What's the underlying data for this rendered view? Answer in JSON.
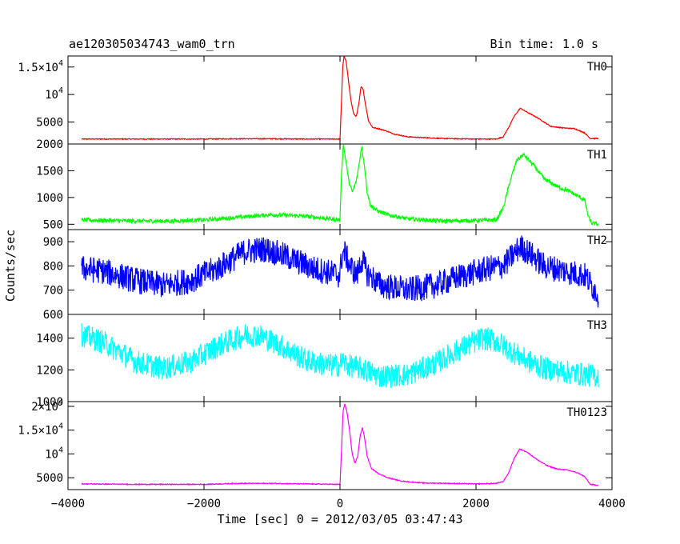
{
  "header": {
    "title": "ae120305034743_wam0_trn",
    "bin_time": "Bin time: 1.0 s"
  },
  "chart_data": {
    "type": "line",
    "xlabel": "Time [sec] 0 = 2012/03/05 03:47:43",
    "ylabel": "Counts/sec",
    "xlim": [
      -4000,
      4000
    ],
    "x_ticks": [
      -4000,
      -2000,
      0,
      2000,
      4000
    ],
    "x_tick_labels": [
      "−4000",
      "−2000",
      "0",
      "2000",
      "4000"
    ],
    "data_range": [
      -3800,
      3800
    ],
    "panels": [
      {
        "name": "TH0",
        "color": "#ff0000",
        "ylim": [
          1000,
          17000
        ],
        "y_ticks": [
          {
            "v": 5000,
            "base": "5000",
            "sup": ""
          },
          {
            "v": 10000,
            "base": "10",
            "sup": "4"
          },
          {
            "v": 15000,
            "base": "1.5×10",
            "sup": "4"
          }
        ],
        "noise": 80,
        "points": [
          [
            -3800,
            1900
          ],
          [
            -3000,
            1900
          ],
          [
            -2000,
            1900
          ],
          [
            -1500,
            1950
          ],
          [
            -1000,
            1950
          ],
          [
            -500,
            1900
          ],
          [
            -30,
            1900
          ],
          [
            0,
            1900
          ],
          [
            20,
            8000
          ],
          [
            40,
            15000
          ],
          [
            60,
            17000
          ],
          [
            90,
            16000
          ],
          [
            120,
            13000
          ],
          [
            160,
            9000
          ],
          [
            200,
            6500
          ],
          [
            240,
            6000
          ],
          [
            280,
            8500
          ],
          [
            310,
            11500
          ],
          [
            340,
            11000
          ],
          [
            370,
            8500
          ],
          [
            420,
            5200
          ],
          [
            480,
            4000
          ],
          [
            560,
            3800
          ],
          [
            650,
            3500
          ],
          [
            800,
            2800
          ],
          [
            1000,
            2300
          ],
          [
            1500,
            2000
          ],
          [
            2000,
            1900
          ],
          [
            2300,
            1900
          ],
          [
            2400,
            2300
          ],
          [
            2480,
            4000
          ],
          [
            2560,
            6000
          ],
          [
            2650,
            7500
          ],
          [
            2750,
            6800
          ],
          [
            2900,
            5800
          ],
          [
            3000,
            5000
          ],
          [
            3100,
            4200
          ],
          [
            3300,
            3900
          ],
          [
            3450,
            3800
          ],
          [
            3600,
            3000
          ],
          [
            3680,
            2000
          ],
          [
            3800,
            2000
          ]
        ]
      },
      {
        "name": "TH1",
        "color": "#00ff00",
        "ylim": [
          400,
          2000
        ],
        "y_ticks": [
          {
            "v": 500,
            "base": "500",
            "sup": ""
          },
          {
            "v": 1000,
            "base": "1000",
            "sup": ""
          },
          {
            "v": 1500,
            "base": "1500",
            "sup": ""
          },
          {
            "v": 2000,
            "base": "2000",
            "sup": ""
          }
        ],
        "noise": 38,
        "points": [
          [
            -3800,
            580
          ],
          [
            -3000,
            560
          ],
          [
            -2500,
            560
          ],
          [
            -2000,
            580
          ],
          [
            -1500,
            630
          ],
          [
            -1000,
            680
          ],
          [
            -500,
            650
          ],
          [
            0,
            580
          ],
          [
            20,
            1400
          ],
          [
            50,
            2000
          ],
          [
            90,
            1650
          ],
          [
            130,
            1300
          ],
          [
            180,
            1100
          ],
          [
            240,
            1300
          ],
          [
            290,
            1700
          ],
          [
            320,
            1950
          ],
          [
            360,
            1600
          ],
          [
            400,
            1100
          ],
          [
            450,
            850
          ],
          [
            550,
            750
          ],
          [
            700,
            680
          ],
          [
            1000,
            600
          ],
          [
            1500,
            560
          ],
          [
            2000,
            570
          ],
          [
            2300,
            580
          ],
          [
            2400,
            800
          ],
          [
            2500,
            1300
          ],
          [
            2600,
            1700
          ],
          [
            2700,
            1800
          ],
          [
            2850,
            1600
          ],
          [
            3000,
            1350
          ],
          [
            3200,
            1200
          ],
          [
            3400,
            1100
          ],
          [
            3600,
            950
          ],
          [
            3650,
            650
          ],
          [
            3700,
            520
          ],
          [
            3800,
            500
          ]
        ]
      },
      {
        "name": "TH2",
        "color": "#0000ff",
        "ylim": [
          600,
          950
        ],
        "y_ticks": [
          {
            "v": 600,
            "base": "600",
            "sup": ""
          },
          {
            "v": 700,
            "base": "700",
            "sup": ""
          },
          {
            "v": 800,
            "base": "800",
            "sup": ""
          },
          {
            "v": 900,
            "base": "900",
            "sup": ""
          }
        ],
        "noise": 55,
        "points": [
          [
            -3800,
            790
          ],
          [
            -3500,
            780
          ],
          [
            -3000,
            740
          ],
          [
            -2600,
            720
          ],
          [
            -2200,
            740
          ],
          [
            -1800,
            790
          ],
          [
            -1400,
            860
          ],
          [
            -1100,
            870
          ],
          [
            -800,
            840
          ],
          [
            -400,
            790
          ],
          [
            -100,
            770
          ],
          [
            0,
            760
          ],
          [
            20,
            830
          ],
          [
            60,
            860
          ],
          [
            150,
            800
          ],
          [
            250,
            760
          ],
          [
            320,
            830
          ],
          [
            400,
            770
          ],
          [
            600,
            720
          ],
          [
            1000,
            700
          ],
          [
            1400,
            720
          ],
          [
            1800,
            760
          ],
          [
            2200,
            790
          ],
          [
            2400,
            800
          ],
          [
            2500,
            830
          ],
          [
            2650,
            880
          ],
          [
            2800,
            850
          ],
          [
            3000,
            800
          ],
          [
            3300,
            780
          ],
          [
            3600,
            760
          ],
          [
            3800,
            680
          ]
        ]
      },
      {
        "name": "TH3",
        "color": "#00ffff",
        "ylim": [
          1000,
          1550
        ],
        "y_ticks": [
          {
            "v": 1000,
            "base": "1000",
            "sup": ""
          },
          {
            "v": 1200,
            "base": "1200",
            "sup": ""
          },
          {
            "v": 1400,
            "base": "1400",
            "sup": ""
          }
        ],
        "noise": 75,
        "points": [
          [
            -3800,
            1420
          ],
          [
            -3500,
            1380
          ],
          [
            -3000,
            1250
          ],
          [
            -2600,
            1210
          ],
          [
            -2200,
            1250
          ],
          [
            -1800,
            1350
          ],
          [
            -1400,
            1420
          ],
          [
            -1200,
            1420
          ],
          [
            -900,
            1360
          ],
          [
            -500,
            1260
          ],
          [
            -200,
            1230
          ],
          [
            0,
            1230
          ],
          [
            30,
            1260
          ],
          [
            100,
            1230
          ],
          [
            300,
            1210
          ],
          [
            600,
            1160
          ],
          [
            1000,
            1170
          ],
          [
            1400,
            1240
          ],
          [
            1800,
            1340
          ],
          [
            2100,
            1400
          ],
          [
            2300,
            1380
          ],
          [
            2700,
            1270
          ],
          [
            3000,
            1210
          ],
          [
            3400,
            1180
          ],
          [
            3800,
            1160
          ]
        ]
      },
      {
        "name": "TH0123",
        "color": "#ff00ff",
        "ylim": [
          2500,
          21000
        ],
        "y_ticks": [
          {
            "v": 5000,
            "base": "5000",
            "sup": ""
          },
          {
            "v": 10000,
            "base": "10",
            "sup": "4"
          },
          {
            "v": 15000,
            "base": "1.5×10",
            "sup": "4"
          },
          {
            "v": 20000,
            "base": "2×10",
            "sup": "4"
          }
        ],
        "noise": 90,
        "points": [
          [
            -3800,
            3700
          ],
          [
            -3000,
            3600
          ],
          [
            -2000,
            3600
          ],
          [
            -1500,
            3800
          ],
          [
            -1000,
            3800
          ],
          [
            -500,
            3700
          ],
          [
            -30,
            3600
          ],
          [
            0,
            3600
          ],
          [
            20,
            10000
          ],
          [
            45,
            19000
          ],
          [
            70,
            20500
          ],
          [
            100,
            19000
          ],
          [
            140,
            15000
          ],
          [
            180,
            10000
          ],
          [
            220,
            8000
          ],
          [
            260,
            9500
          ],
          [
            300,
            14000
          ],
          [
            330,
            15500
          ],
          [
            360,
            13500
          ],
          [
            400,
            9500
          ],
          [
            460,
            7000
          ],
          [
            550,
            6000
          ],
          [
            700,
            5000
          ],
          [
            900,
            4300
          ],
          [
            1200,
            3900
          ],
          [
            1600,
            3800
          ],
          [
            2000,
            3700
          ],
          [
            2300,
            3800
          ],
          [
            2400,
            4200
          ],
          [
            2480,
            6000
          ],
          [
            2560,
            9000
          ],
          [
            2640,
            11000
          ],
          [
            2740,
            10500
          ],
          [
            2900,
            8800
          ],
          [
            3050,
            7500
          ],
          [
            3200,
            6800
          ],
          [
            3350,
            6600
          ],
          [
            3500,
            6000
          ],
          [
            3600,
            5200
          ],
          [
            3680,
            3600
          ],
          [
            3800,
            3400
          ]
        ]
      }
    ]
  }
}
